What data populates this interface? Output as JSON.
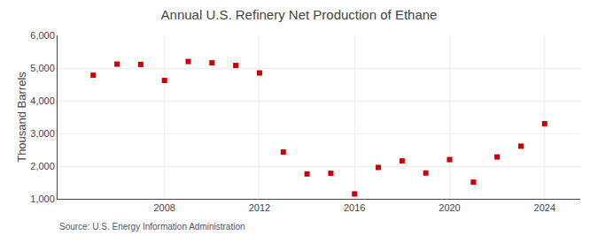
{
  "chart_data": {
    "type": "scatter",
    "title": "Annual U.S. Refinery Net Production of Ethane",
    "ylabel": "Thousand Barrels",
    "annotations": [
      "Source: U.S. Energy Information Administration"
    ],
    "x": [
      2005,
      2006,
      2007,
      2008,
      2009,
      2010,
      2011,
      2012,
      2013,
      2014,
      2015,
      2016,
      2017,
      2018,
      2019,
      2020,
      2021,
      2022,
      2023,
      2024
    ],
    "values": [
      4780,
      5120,
      5110,
      4620,
      5200,
      5160,
      5080,
      4850,
      2430,
      1760,
      1780,
      1150,
      1960,
      2160,
      1790,
      2200,
      1510,
      2280,
      2610,
      3300
    ],
    "color": "#cc0000",
    "marker": "square",
    "xlim": [
      2003.5,
      2025.5
    ],
    "xticks": [
      2008,
      2012,
      2016,
      2020,
      2024
    ],
    "ylim": [
      1000,
      6000
    ],
    "yticks": [
      {
        "value": 1000,
        "label": "1,000"
      },
      {
        "value": 2000,
        "label": "2,000"
      },
      {
        "value": 3000,
        "label": "3,000"
      },
      {
        "value": 4000,
        "label": "4,000"
      },
      {
        "value": 5000,
        "label": "5,000"
      },
      {
        "value": 6000,
        "label": "6,000"
      }
    ],
    "grid": true
  }
}
